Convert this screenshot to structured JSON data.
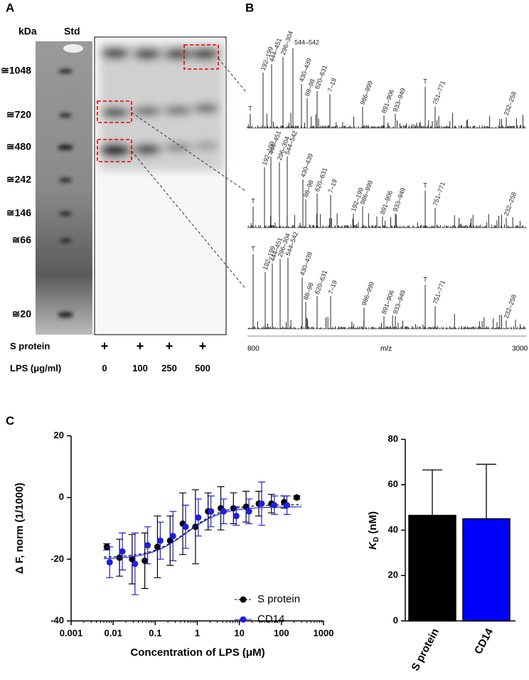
{
  "panel_labels": [
    "A",
    "B",
    "C"
  ],
  "gel": {
    "unit": "kDa",
    "std": "Std",
    "markers": [
      "≅1048",
      "≅720",
      "≅480",
      "≅242",
      "≅146",
      "≅66",
      "≅20"
    ],
    "rows": [
      {
        "label": "S protein",
        "values": [
          "+",
          "+",
          "+",
          "+"
        ]
      },
      {
        "label": "LPS (μg/ml)",
        "values": [
          0,
          100,
          250,
          500
        ]
      }
    ]
  },
  "spectra": {
    "peaks": [
      [
        "T",
        "192–199",
        "444–451",
        "296–304",
        "544–542",
        "430–439",
        "88–98",
        "620–631",
        "7–19",
        "986–999",
        "891–906",
        "933–949",
        "T",
        "751–771",
        "232–258"
      ],
      [
        "T",
        "192–199",
        "444–451",
        "296–304",
        "544–542",
        "430–439",
        "88–98",
        "620–631",
        "7–19",
        "192–199",
        "986–999",
        "891–906",
        "933–949",
        "T",
        "751–771",
        "232–258"
      ],
      [
        "T",
        "192–199",
        "444–451",
        "296–304",
        "544–542",
        "430–439",
        "88–98",
        "620–631",
        "7–19",
        "986–999",
        "891–906",
        "933–949",
        "T",
        "751–771",
        "232–258"
      ]
    ],
    "axis": {
      "min": "800",
      "label": "m/z",
      "max": "3000"
    }
  },
  "chart_data": [
    {
      "type": "scatter",
      "x_label": "Concentration of LPS (μM)",
      "y_label": "Δ F, norm (1/1000)",
      "xscale": "log",
      "xlim": [
        0.001,
        1000
      ],
      "xticks": [
        0.001,
        0.01,
        0.1,
        1,
        10,
        100,
        1000
      ],
      "ylim": [
        -40,
        20
      ],
      "yticks": [
        -40,
        -20,
        0,
        20
      ],
      "legend": "bottom-right",
      "series": [
        {
          "name": "S protein",
          "color": "#000000",
          "line": "dashed",
          "x": [
            0.00763,
            0.0153,
            0.0305,
            0.061,
            0.122,
            0.244,
            0.488,
            0.977,
            1.95,
            3.91,
            7.81,
            15.6,
            31.3,
            62.5,
            125,
            250
          ],
          "values": [
            -16,
            -19.5,
            -20,
            -20.5,
            -16,
            -14,
            -8.5,
            -9.5,
            -4.5,
            -3.5,
            -3.5,
            -3,
            -2,
            -2,
            -1.5,
            0
          ],
          "errors": [
            1,
            6,
            8,
            9,
            10,
            8,
            10,
            12,
            6,
            7,
            5,
            5,
            4,
            3,
            2,
            0.5
          ],
          "fit": {
            "bottom": -19.5,
            "top": -2.3,
            "ec50": 0.6
          }
        },
        {
          "name": "CD14",
          "color": "#1f1fe0",
          "line": "solid",
          "x": [
            0.00763,
            0.0153,
            0.0305,
            0.061,
            0.122,
            0.244,
            0.488,
            0.977,
            1.95,
            3.91,
            7.81,
            15.6,
            31.3,
            62.5,
            125
          ],
          "values": [
            -21,
            -17.5,
            -21.5,
            -15.5,
            -14,
            -12.5,
            -9.5,
            -6.5,
            -4.5,
            -4.5,
            -6,
            -4.5,
            -2,
            -2.5,
            -2.5
          ],
          "errors": [
            5,
            6,
            10,
            6,
            6,
            8,
            7,
            6,
            5,
            4,
            3,
            4,
            7,
            3,
            3
          ],
          "fit": {
            "bottom": -20,
            "top": -3,
            "ec50": 0.55
          }
        }
      ]
    },
    {
      "type": "bar",
      "y_label": [
        "K",
        "D",
        " (nM)"
      ],
      "categories": [
        "S protein",
        "CD14"
      ],
      "values": [
        46.5,
        45
      ],
      "errors": [
        20,
        24
      ],
      "colors": [
        "#000000",
        "#0000ff"
      ],
      "ylim": [
        0,
        80
      ],
      "yticks": [
        0,
        20,
        40,
        60,
        80
      ]
    }
  ]
}
